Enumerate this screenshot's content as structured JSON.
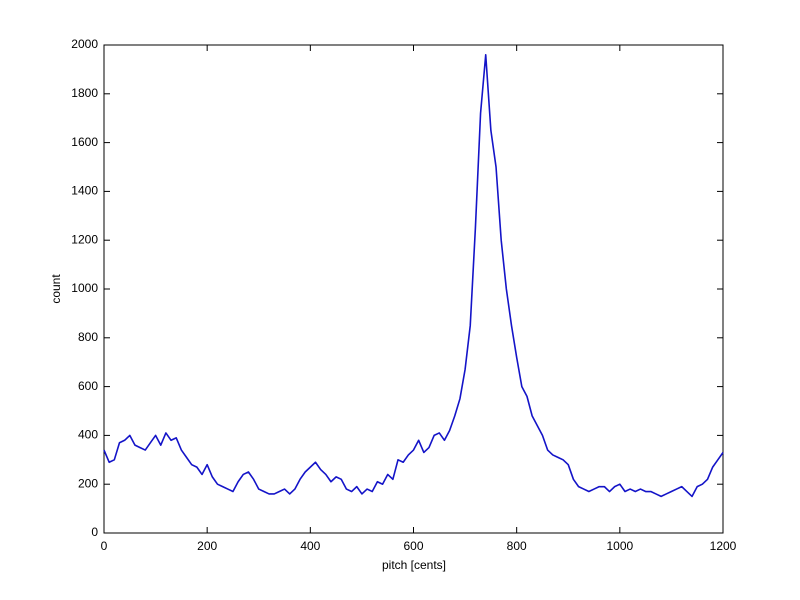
{
  "chart_data": {
    "type": "line",
    "xlabel": "pitch [cents]",
    "ylabel": "count",
    "x": [
      0,
      10,
      20,
      30,
      40,
      50,
      60,
      70,
      80,
      90,
      100,
      110,
      120,
      130,
      140,
      150,
      160,
      170,
      180,
      190,
      200,
      210,
      220,
      230,
      240,
      250,
      260,
      270,
      280,
      290,
      300,
      310,
      320,
      330,
      340,
      350,
      360,
      370,
      380,
      390,
      400,
      410,
      420,
      430,
      440,
      450,
      460,
      470,
      480,
      490,
      500,
      510,
      520,
      530,
      540,
      550,
      560,
      570,
      580,
      590,
      600,
      610,
      620,
      630,
      640,
      650,
      660,
      670,
      680,
      690,
      700,
      710,
      720,
      730,
      740,
      750,
      760,
      770,
      780,
      790,
      800,
      810,
      820,
      830,
      840,
      850,
      860,
      870,
      880,
      890,
      900,
      910,
      920,
      930,
      940,
      950,
      960,
      970,
      980,
      990,
      1000,
      1010,
      1020,
      1030,
      1040,
      1050,
      1060,
      1070,
      1080,
      1090,
      1100,
      1110,
      1120,
      1130,
      1140,
      1150,
      1160,
      1170,
      1180,
      1190,
      1200
    ],
    "series": [
      {
        "name": "count",
        "color": "#1414c8",
        "values": [
          340,
          290,
          300,
          370,
          380,
          400,
          360,
          350,
          340,
          370,
          400,
          360,
          410,
          380,
          390,
          340,
          310,
          280,
          270,
          240,
          280,
          230,
          200,
          190,
          180,
          170,
          210,
          240,
          250,
          220,
          180,
          170,
          160,
          160,
          170,
          180,
          160,
          180,
          220,
          250,
          270,
          290,
          260,
          240,
          210,
          230,
          220,
          180,
          170,
          190,
          160,
          180,
          170,
          210,
          200,
          240,
          220,
          300,
          290,
          320,
          340,
          380,
          330,
          350,
          400,
          410,
          380,
          420,
          480,
          550,
          670,
          850,
          1250,
          1720,
          1960,
          1650,
          1500,
          1200,
          1000,
          850,
          720,
          600,
          560,
          480,
          440,
          400,
          340,
          320,
          310,
          300,
          280,
          220,
          190,
          180,
          170,
          180,
          190,
          190,
          170,
          190,
          200,
          170,
          180,
          170,
          180,
          170,
          170,
          160,
          150,
          160,
          170,
          180,
          190,
          170,
          150,
          190,
          200,
          220,
          270,
          300,
          330
        ]
      }
    ],
    "xlim": [
      0,
      1200
    ],
    "xticks": [
      0,
      200,
      400,
      600,
      800,
      1000,
      1200
    ],
    "ylim": [
      0,
      2000
    ],
    "yticks": [
      0,
      200,
      400,
      600,
      800,
      1000,
      1200,
      1400,
      1600,
      1800,
      2000
    ]
  }
}
